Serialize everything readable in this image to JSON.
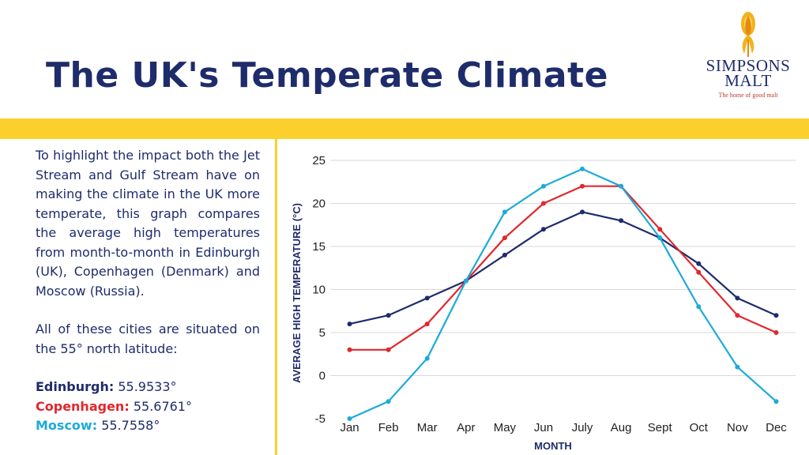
{
  "header": {
    "title": "The UK's Temperate Climate",
    "logo": {
      "name_line1": "SIMPSONS",
      "name_line2": "MALT",
      "tagline": "The home of good malt"
    }
  },
  "text_panel": {
    "paragraph1": "To highlight the impact both the Jet Stream and Gulf Stream have on making the climate in the UK more temperate, this graph compares the average high temperatures from month-to-month in Edinburgh (UK), Copenhagen (Denmark) and Moscow (Russia).",
    "paragraph2": "All of these cities are situated on the 55° north latitude:",
    "latitudes": [
      {
        "city": "Edinburgh:",
        "value": "55.9533°",
        "color": "#1e2c6b"
      },
      {
        "city": "Copenhagen:",
        "value": "55.6761°",
        "color": "#e0282e"
      },
      {
        "city": "Moscow:",
        "value": "55.7558°",
        "color": "#1cabd9"
      }
    ]
  },
  "colors": {
    "accent_band": "#fbd02c",
    "title": "#1e2c6b",
    "grid": "#d9d9d9"
  },
  "chart_data": {
    "type": "line",
    "xlabel": "MONTH",
    "ylabel": "AVERAGE HIGH TEMPERATURE (°C)",
    "categories": [
      "Jan",
      "Feb",
      "Mar",
      "Apr",
      "May",
      "Jun",
      "July",
      "Aug",
      "Sept",
      "Oct",
      "Nov",
      "Dec"
    ],
    "ylim": [
      -5,
      25
    ],
    "yticks": [
      -5,
      0,
      5,
      10,
      15,
      20,
      25
    ],
    "grid": true,
    "legend": "none",
    "series": [
      {
        "color": "#1e2c6b",
        "values": [
          6,
          7,
          9,
          11,
          14,
          17,
          19,
          18,
          16,
          13,
          9,
          7
        ]
      },
      {
        "color": "#e0282e",
        "values": [
          3,
          3,
          6,
          11,
          16,
          20,
          22,
          22,
          17,
          12,
          7,
          5
        ]
      },
      {
        "color": "#1cabd9",
        "values": [
          -5,
          -3,
          2,
          11,
          19,
          22,
          24,
          22,
          16,
          8,
          1,
          -3
        ]
      }
    ]
  }
}
